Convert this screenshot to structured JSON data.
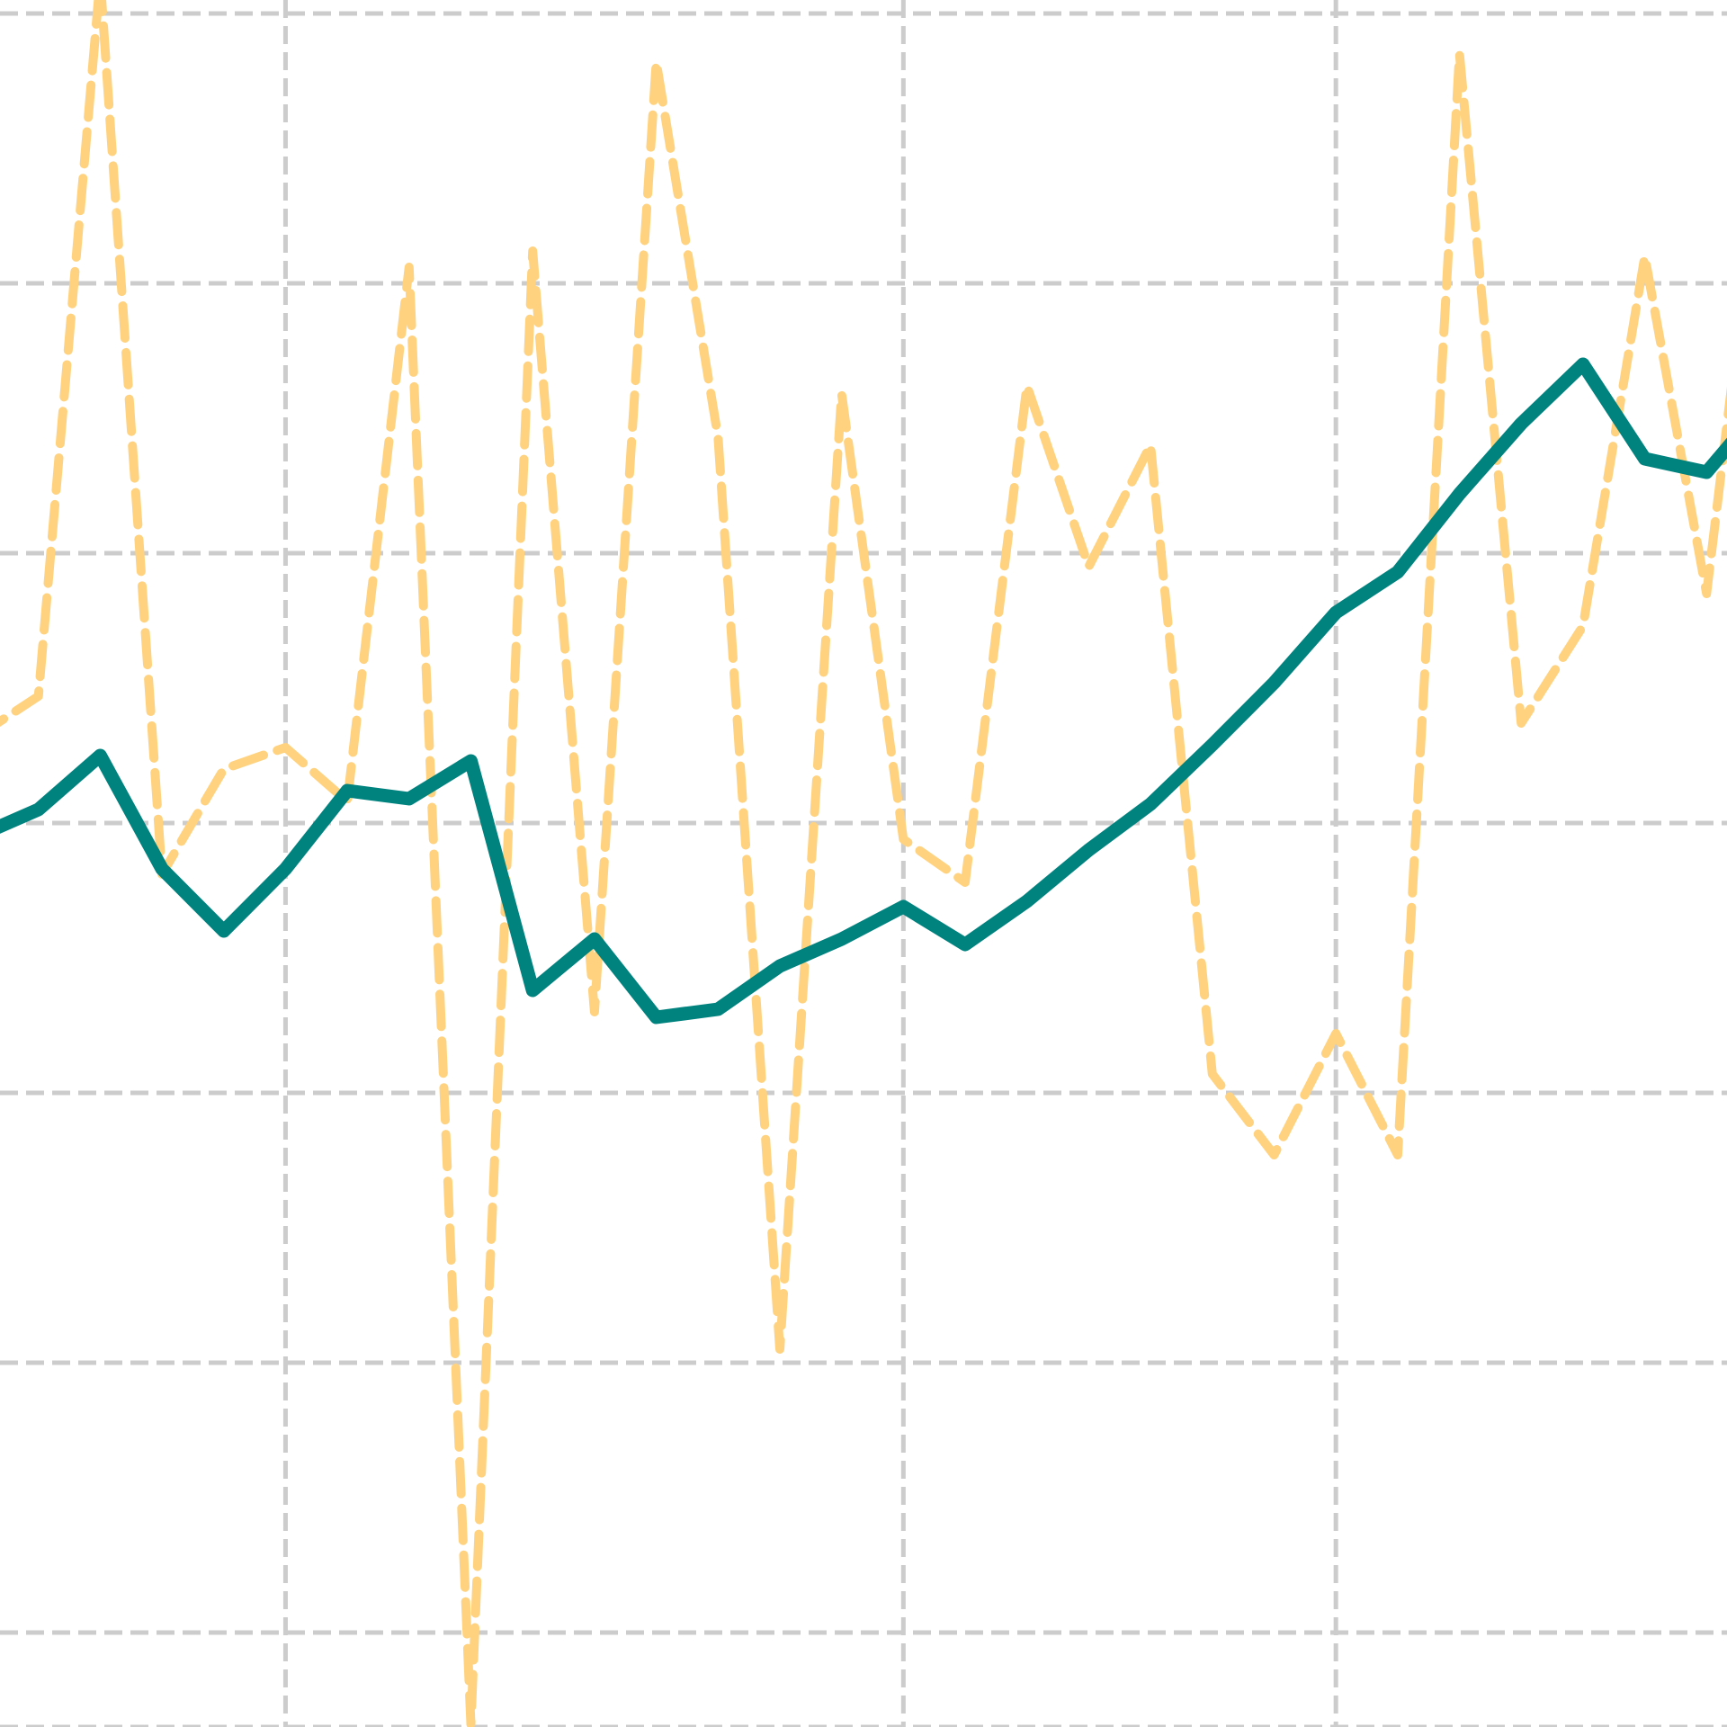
{
  "chart_data": {
    "type": "line",
    "title": "",
    "xlabel": "",
    "ylabel": "",
    "xlim": [
      0,
      29
    ],
    "ylim": [
      0,
      6.4
    ],
    "grid": true,
    "x_gridlines": [
      5,
      15,
      22
    ],
    "y_gridlines": [
      0,
      0.35,
      1.35,
      2.35,
      3.35,
      4.35,
      5.35,
      6.35
    ],
    "colors": {
      "primary": "#00827f",
      "secondary": "#ffd27f",
      "grid": "#cccccc"
    },
    "x": [
      0,
      1,
      2,
      3,
      4,
      5,
      6,
      7,
      8,
      9,
      10,
      11,
      12,
      13,
      14,
      15,
      16,
      17,
      18,
      19,
      20,
      21,
      22,
      23,
      24,
      25,
      26,
      27,
      28,
      29
    ],
    "series": [
      {
        "values": [
          3.3,
          3.4,
          3.6,
          3.18,
          2.95,
          3.18,
          3.47,
          3.44,
          3.58,
          2.73,
          2.92,
          2.63,
          2.66,
          2.82,
          2.92,
          3.04,
          2.9,
          3.06,
          3.25,
          3.42,
          3.64,
          3.87,
          4.13,
          4.28,
          4.57,
          4.83,
          5.05,
          4.7,
          4.65,
          4.92
        ],
        "style": "solid"
      },
      {
        "values": [
          3.67,
          3.82,
          6.48,
          3.16,
          3.55,
          3.63,
          3.43,
          5.41,
          0.01,
          5.47,
          2.65,
          6.17,
          4.78,
          1.4,
          4.94,
          3.29,
          3.13,
          4.97,
          4.3,
          4.75,
          2.42,
          2.12,
          2.57,
          2.12,
          6.2,
          3.72,
          4.08,
          5.45,
          4.2,
          6.1
        ],
        "style": "dashed"
      }
    ]
  }
}
